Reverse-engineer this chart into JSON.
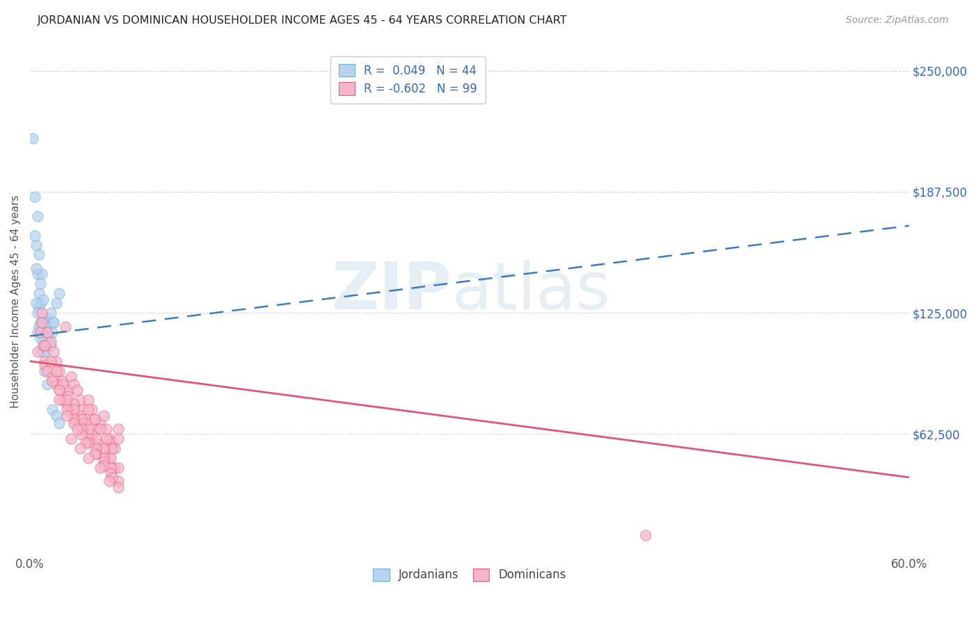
{
  "title": "JORDANIAN VS DOMINICAN HOUSEHOLDER INCOME AGES 45 - 64 YEARS CORRELATION CHART",
  "source": "Source: ZipAtlas.com",
  "ylabel": "Householder Income Ages 45 - 64 years",
  "ytick_labels": [
    "$62,500",
    "$125,000",
    "$187,500",
    "$250,000"
  ],
  "ytick_values": [
    62500,
    125000,
    187500,
    250000
  ],
  "ymin": 0,
  "ymax": 262000,
  "xmin": 0.0,
  "xmax": 0.6,
  "color_jordanian_fill": "#b8d4f0",
  "color_jordanian_edge": "#6baed6",
  "color_dominican_fill": "#f8b4c8",
  "color_dominican_edge": "#e06080",
  "color_blue_line": "#3a7abf",
  "color_pink_line": "#e05575",
  "color_text_blue": "#3366cc",
  "color_grid": "#cccccc",
  "jordanian_x": [
    0.005,
    0.008,
    0.01,
    0.012,
    0.014,
    0.016,
    0.018,
    0.02,
    0.002,
    0.003,
    0.004,
    0.005,
    0.005,
    0.006,
    0.006,
    0.006,
    0.007,
    0.007,
    0.007,
    0.008,
    0.008,
    0.009,
    0.009,
    0.01,
    0.01,
    0.011,
    0.011,
    0.012,
    0.013,
    0.014,
    0.015,
    0.016,
    0.003,
    0.004,
    0.004,
    0.005,
    0.006,
    0.007,
    0.008,
    0.01,
    0.012,
    0.015,
    0.018,
    0.02
  ],
  "jordanian_y": [
    115000,
    118000,
    120000,
    122000,
    125000,
    120000,
    130000,
    135000,
    215000,
    185000,
    160000,
    145000,
    175000,
    135000,
    128000,
    155000,
    140000,
    130000,
    120000,
    145000,
    115000,
    132000,
    110000,
    120000,
    108000,
    115000,
    105000,
    118000,
    112000,
    108000,
    115000,
    120000,
    165000,
    148000,
    130000,
    125000,
    118000,
    112000,
    105000,
    95000,
    88000,
    75000,
    72000,
    68000
  ],
  "dominican_x": [
    0.005,
    0.007,
    0.008,
    0.009,
    0.01,
    0.012,
    0.014,
    0.016,
    0.018,
    0.02,
    0.022,
    0.024,
    0.026,
    0.028,
    0.03,
    0.032,
    0.034,
    0.036,
    0.038,
    0.04,
    0.042,
    0.044,
    0.046,
    0.048,
    0.05,
    0.052,
    0.054,
    0.056,
    0.058,
    0.06,
    0.01,
    0.012,
    0.015,
    0.018,
    0.02,
    0.022,
    0.025,
    0.028,
    0.03,
    0.033,
    0.036,
    0.04,
    0.044,
    0.048,
    0.052,
    0.056,
    0.06,
    0.008,
    0.01,
    0.014,
    0.018,
    0.022,
    0.026,
    0.03,
    0.034,
    0.038,
    0.042,
    0.046,
    0.05,
    0.054,
    0.058,
    0.015,
    0.02,
    0.025,
    0.03,
    0.035,
    0.04,
    0.045,
    0.05,
    0.055,
    0.06,
    0.02,
    0.025,
    0.03,
    0.035,
    0.04,
    0.045,
    0.05,
    0.055,
    0.03,
    0.035,
    0.04,
    0.045,
    0.05,
    0.055,
    0.06,
    0.025,
    0.032,
    0.038,
    0.044,
    0.05,
    0.056,
    0.028,
    0.034,
    0.04,
    0.048,
    0.054,
    0.06,
    0.42
  ],
  "dominican_y": [
    105000,
    115000,
    125000,
    108000,
    100000,
    115000,
    110000,
    105000,
    100000,
    95000,
    90000,
    118000,
    85000,
    92000,
    88000,
    85000,
    80000,
    75000,
    70000,
    80000,
    75000,
    70000,
    65000,
    68000,
    72000,
    65000,
    60000,
    58000,
    55000,
    65000,
    98000,
    95000,
    92000,
    88000,
    85000,
    80000,
    78000,
    75000,
    72000,
    68000,
    65000,
    75000,
    70000,
    65000,
    60000,
    55000,
    60000,
    120000,
    108000,
    100000,
    95000,
    88000,
    82000,
    78000,
    72000,
    68000,
    62000,
    58000,
    55000,
    50000,
    45000,
    90000,
    85000,
    80000,
    75000,
    70000,
    65000,
    60000,
    55000,
    50000,
    45000,
    80000,
    75000,
    70000,
    65000,
    60000,
    55000,
    50000,
    45000,
    68000,
    62000,
    58000,
    52000,
    48000,
    42000,
    38000,
    72000,
    65000,
    58000,
    52000,
    46000,
    40000,
    60000,
    55000,
    50000,
    45000,
    38000,
    35000,
    10000
  ]
}
